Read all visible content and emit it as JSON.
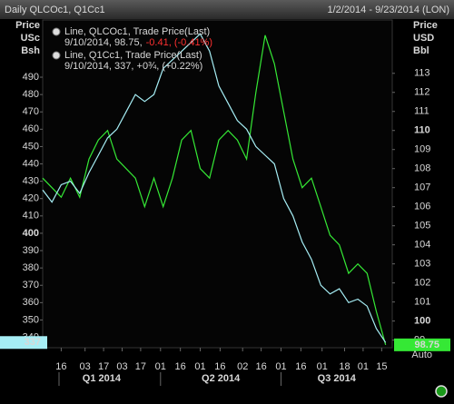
{
  "chart_data": {
    "type": "line",
    "title": "Daily QLCOc1, Q1Cc1",
    "date_range": "1/2/2014 - 9/23/2014 (LON)",
    "y_label": [
      "Price",
      "USc",
      "Bsh"
    ],
    "y2_label": [
      "Price",
      "USD",
      "Bbl"
    ],
    "y2_scale_label": "Auto",
    "x": [
      "2014-01-02",
      "2014-01-09",
      "2014-01-16",
      "2014-01-23",
      "2014-01-30",
      "2014-02-06",
      "2014-02-13",
      "2014-02-20",
      "2014-02-27",
      "2014-03-06",
      "2014-03-13",
      "2014-03-20",
      "2014-03-27",
      "2014-04-03",
      "2014-04-10",
      "2014-04-17",
      "2014-04-24",
      "2014-05-01",
      "2014-05-08",
      "2014-05-15",
      "2014-05-22",
      "2014-05-29",
      "2014-06-05",
      "2014-06-12",
      "2014-06-19",
      "2014-06-26",
      "2014-07-03",
      "2014-07-10",
      "2014-07-17",
      "2014-07-24",
      "2014-07-31",
      "2014-08-07",
      "2014-08-14",
      "2014-08-21",
      "2014-08-28",
      "2014-09-04",
      "2014-09-11",
      "2014-09-18"
    ],
    "xlim": [
      "2014-01-02",
      "2014-09-23"
    ],
    "xticks": [
      {
        "value": "2014-01-16",
        "label": "16"
      },
      {
        "value": "2014-02-03",
        "label": "03"
      },
      {
        "value": "2014-02-17",
        "label": "17"
      },
      {
        "value": "2014-03-03",
        "label": "03"
      },
      {
        "value": "2014-03-17",
        "label": "17"
      },
      {
        "value": "2014-04-01",
        "label": "01"
      },
      {
        "value": "2014-04-16",
        "label": "16"
      },
      {
        "value": "2014-05-01",
        "label": "01"
      },
      {
        "value": "2014-05-16",
        "label": "16"
      },
      {
        "value": "2014-06-02",
        "label": "02"
      },
      {
        "value": "2014-06-16",
        "label": "16"
      },
      {
        "value": "2014-07-01",
        "label": "01"
      },
      {
        "value": "2014-07-16",
        "label": "16"
      },
      {
        "value": "2014-08-01",
        "label": "01"
      },
      {
        "value": "2014-08-18",
        "label": "18"
      },
      {
        "value": "2014-09-01",
        "label": "01"
      },
      {
        "value": "2014-09-15",
        "label": "15"
      }
    ],
    "quarters": [
      "Q1 2014",
      "Q2 2014",
      "Q3 2014"
    ],
    "ylim": [
      334,
      523
    ],
    "yticks": [
      340,
      350,
      360,
      370,
      380,
      390,
      400,
      410,
      420,
      430,
      440,
      450,
      460,
      470,
      480,
      490
    ],
    "y2lim": [
      98.6,
      115.8
    ],
    "y2ticks": [
      99,
      100,
      101,
      102,
      103,
      104,
      105,
      106,
      107,
      108,
      109,
      110,
      111,
      112,
      113
    ],
    "series": [
      {
        "name": "Line, QLCOc1, Trade Price(Last)",
        "detail": "9/10/2014, 98.75,",
        "change": "-0.41, (-0.41%)",
        "color": "#35e835",
        "axis": "y2",
        "values": [
          107.5,
          107.0,
          106.5,
          107.5,
          106.5,
          108.5,
          109.5,
          110.0,
          108.5,
          108.0,
          107.5,
          106.0,
          107.5,
          106.0,
          107.5,
          109.5,
          110.0,
          108.0,
          107.5,
          109.5,
          110.0,
          109.5,
          108.5,
          112.0,
          115.0,
          113.5,
          111.0,
          108.5,
          107.0,
          107.5,
          106.0,
          104.5,
          104.0,
          102.5,
          103.0,
          102.5,
          100.5,
          98.75
        ]
      },
      {
        "name": "Line, Q1Cc1, Trade Price(Last)",
        "detail": "9/10/2014, 337, +0¾, (+0.22%)",
        "color": "#a6eef5",
        "axis": "y",
        "values": [
          425,
          418,
          428,
          430,
          423,
          435,
          445,
          455,
          460,
          470,
          480,
          476,
          480,
          495,
          500,
          505,
          510,
          515,
          505,
          485,
          475,
          465,
          460,
          450,
          445,
          440,
          420,
          410,
          395,
          385,
          370,
          365,
          368,
          360,
          362,
          358,
          345,
          337
        ]
      }
    ]
  }
}
